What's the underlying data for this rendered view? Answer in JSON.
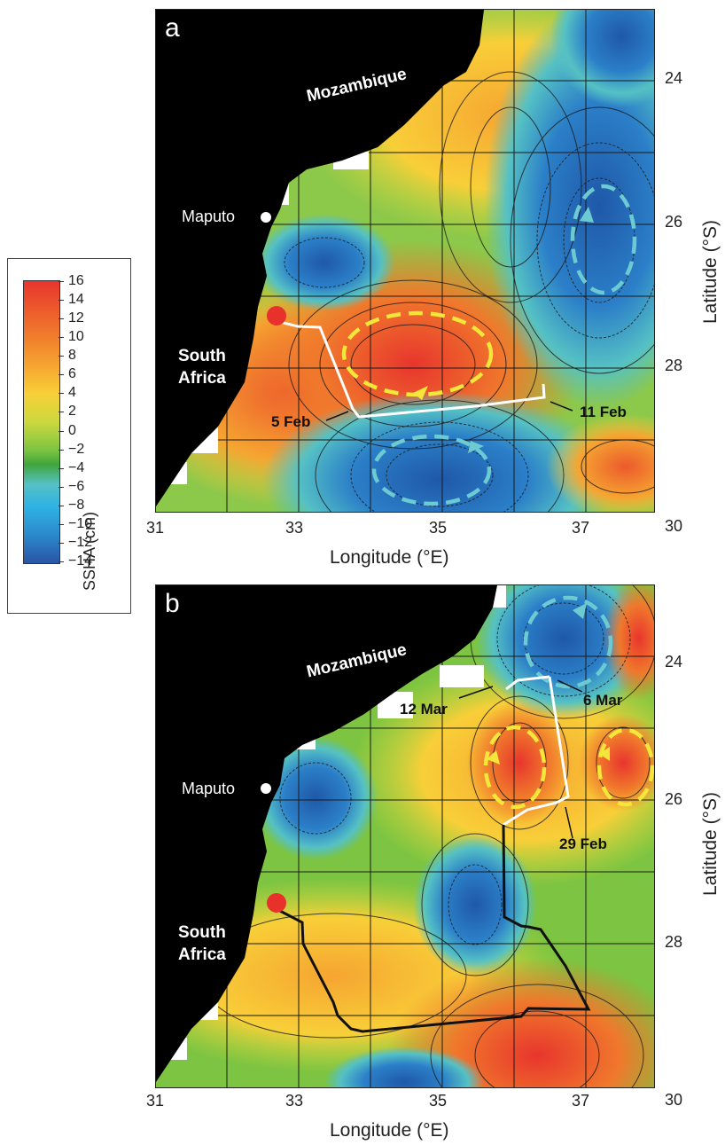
{
  "colorbar": {
    "title": "SSHA (cm)",
    "labels": [
      "16",
      "14",
      "12",
      "10",
      "8",
      "6",
      "4",
      "2",
      "0",
      "−2",
      "−4",
      "−6",
      "−8",
      "−10",
      "−12",
      "−14"
    ]
  },
  "axes": {
    "x_title": "Longitude (°E)",
    "y_title": "Latitude (°S)",
    "x_ticks": [
      "31",
      "33",
      "35",
      "37"
    ],
    "y_ticks": [
      "24",
      "26",
      "28",
      "30"
    ]
  },
  "panel_a": {
    "label": "a",
    "places": {
      "country1": "Mozambique",
      "city": "Maputo",
      "country2_line1": "South",
      "country2_line2": "Africa"
    },
    "dates": {
      "d1": "5 Feb",
      "d2": "11 Feb"
    }
  },
  "panel_b": {
    "label": "b",
    "places": {
      "country1": "Mozambique",
      "city": "Maputo",
      "country2_line1": "South",
      "country2_line2": "Africa"
    },
    "dates": {
      "d1": "12 Mar",
      "d2": "6 Mar",
      "d3": "29 Feb"
    }
  },
  "colors": {
    "land": "#000000",
    "warm_eddy": "#f5e63a",
    "cold_eddy": "#6ccbd2",
    "track_a": "#ffffff",
    "track_b_black": "#111111",
    "track_b_white": "#ffffff",
    "release_point": "#e8312b"
  }
}
